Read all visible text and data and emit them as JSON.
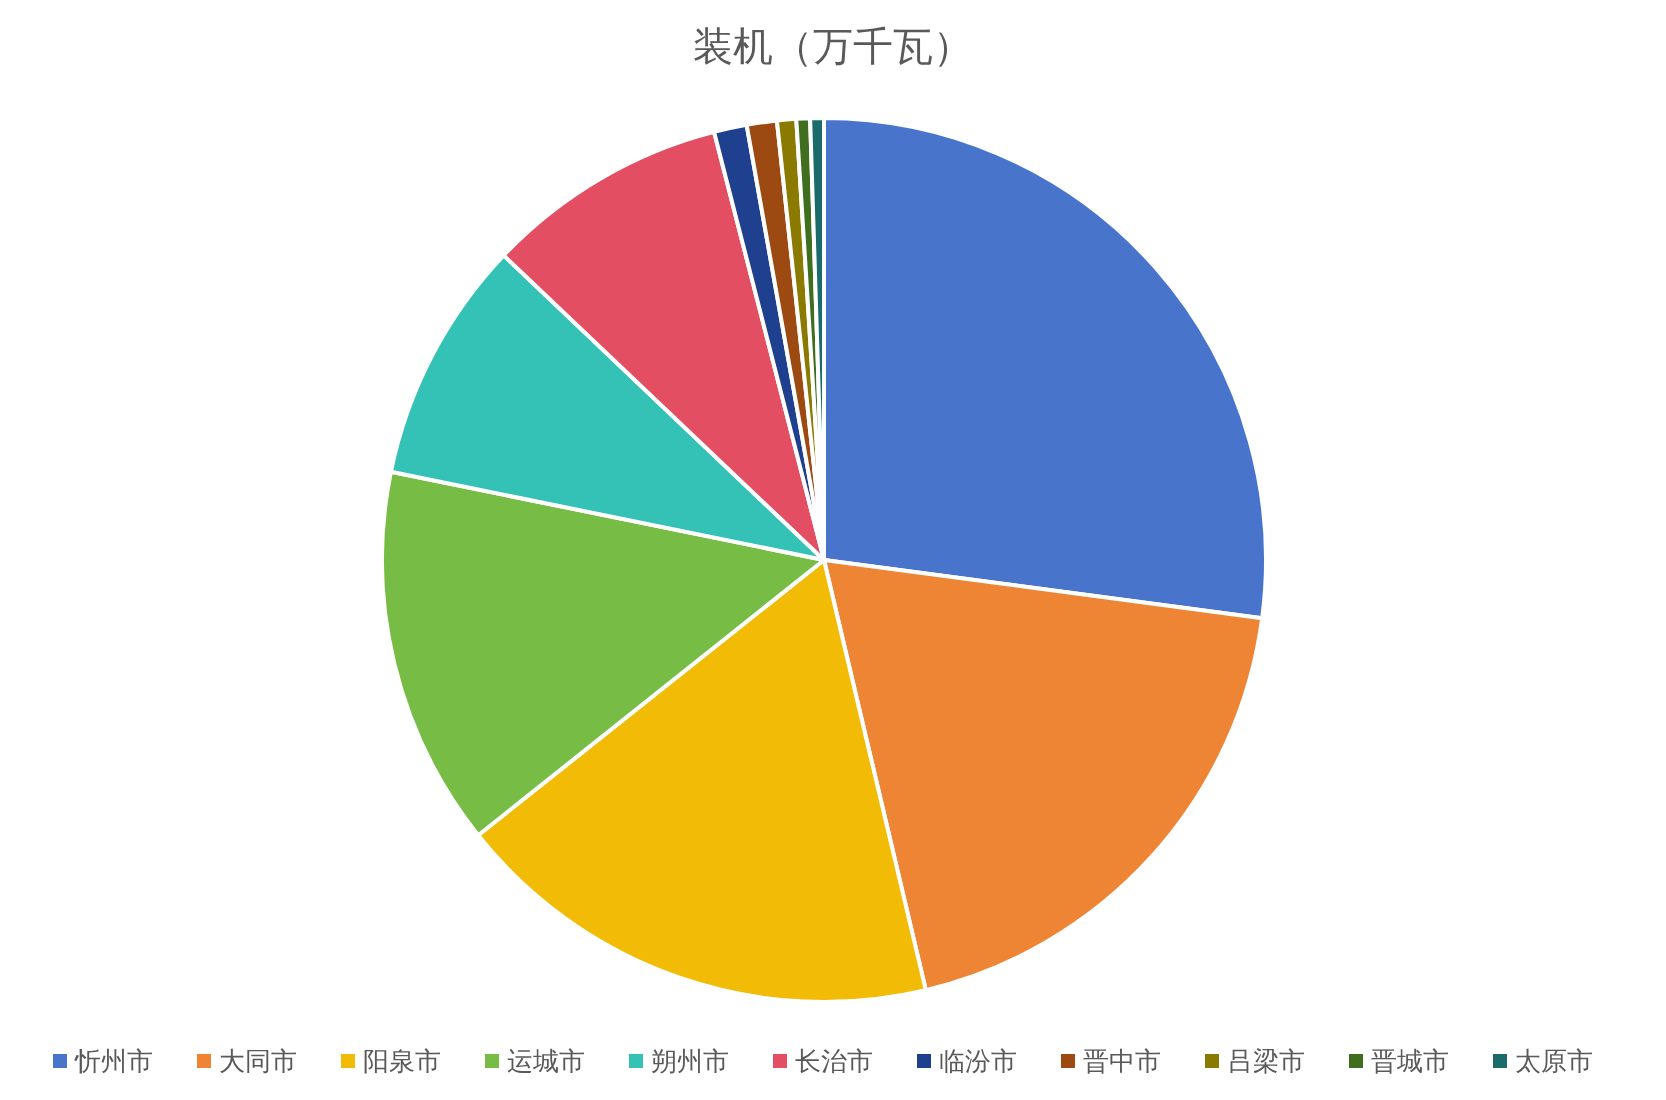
{
  "chart_data": {
    "type": "pie",
    "title": "装机（万千瓦）",
    "categories": [
      "忻州市",
      "大同市",
      "阳泉市",
      "运城市",
      "朔州市",
      "长治市",
      "临汾市",
      "晋中市",
      "吕梁市",
      "晋城市",
      "太原市"
    ],
    "values": [
      27.1,
      19.2,
      18.0,
      13.9,
      8.9,
      8.9,
      1.2,
      1.1,
      0.7,
      0.5,
      0.5
    ],
    "colors": [
      "#4874cc",
      "#ed8535",
      "#f2bb05",
      "#77bd45",
      "#33c2b5",
      "#e34e62",
      "#1f3f8f",
      "#9c4a12",
      "#8a7a00",
      "#3f6e1e",
      "#1b6b6b"
    ],
    "legend": "bottom"
  }
}
